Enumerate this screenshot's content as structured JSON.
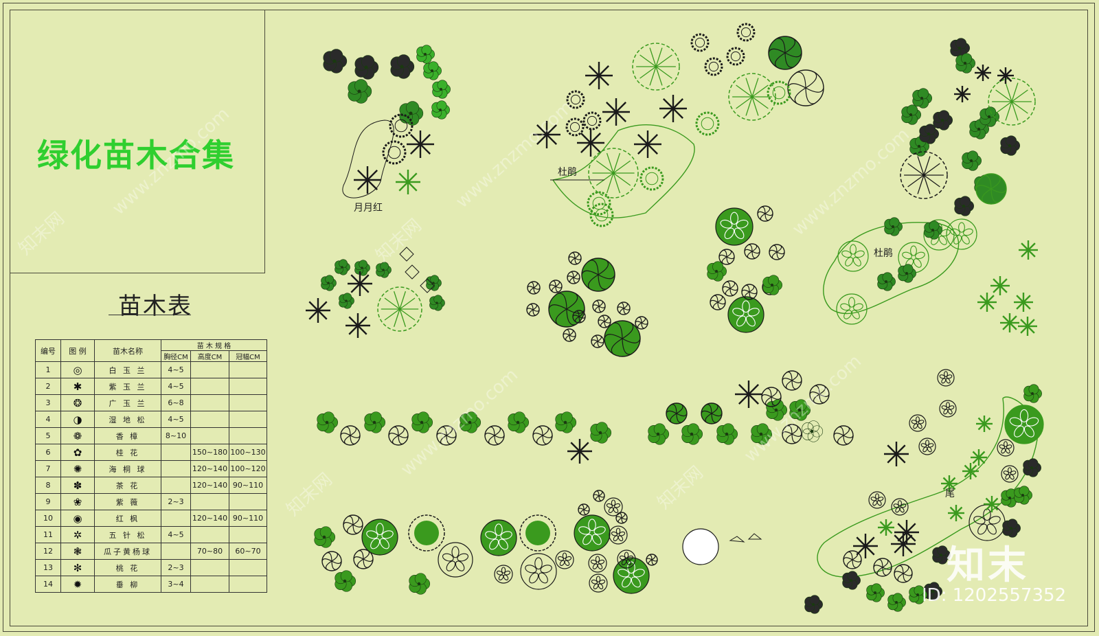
{
  "title": "绿化苗木合集",
  "table_caption": "苗木表",
  "table": {
    "headers": {
      "no": "编号",
      "legend": "图 例",
      "name": "苗木名称",
      "spec": "苗 木 规 格",
      "diameter": "胸径CM",
      "height": "高度CM",
      "crown": "冠幅CM"
    },
    "rows": [
      {
        "no": "1",
        "icon": "◎",
        "name": "白 玉 兰",
        "d": "4~5",
        "h": "",
        "w": ""
      },
      {
        "no": "2",
        "icon": "✱",
        "name": "紫 玉 兰",
        "d": "4~5",
        "h": "",
        "w": ""
      },
      {
        "no": "3",
        "icon": "❂",
        "name": "广 玉 兰",
        "d": "6~8",
        "h": "",
        "w": ""
      },
      {
        "no": "4",
        "icon": "◑",
        "name": "湿 地 松",
        "d": "4~5",
        "h": "",
        "w": ""
      },
      {
        "no": "5",
        "icon": "❁",
        "name": "香   樟",
        "d": "8~10",
        "h": "",
        "w": ""
      },
      {
        "no": "6",
        "icon": "✿",
        "name": "桂   花",
        "d": "",
        "h": "150~180",
        "w": "100~130"
      },
      {
        "no": "7",
        "icon": "✺",
        "name": "海 桐 球",
        "d": "",
        "h": "120~140",
        "w": "100~120"
      },
      {
        "no": "8",
        "icon": "✽",
        "name": "茶   花",
        "d": "",
        "h": "120~140",
        "w": "90~110"
      },
      {
        "no": "9",
        "icon": "❀",
        "name": "紫   薇",
        "d": "2~3",
        "h": "",
        "w": ""
      },
      {
        "no": "10",
        "icon": "◉",
        "name": "红   枫",
        "d": "",
        "h": "120~140",
        "w": "90~110"
      },
      {
        "no": "11",
        "icon": "✲",
        "name": "五 针 松",
        "d": "4~5",
        "h": "",
        "w": ""
      },
      {
        "no": "12",
        "icon": "❃",
        "name": "瓜子黄杨球",
        "d": "",
        "h": "70~80",
        "w": "60~70"
      },
      {
        "no": "13",
        "icon": "✻",
        "name": "桃   花",
        "d": "2~3",
        "h": "",
        "w": ""
      },
      {
        "no": "14",
        "icon": "✹",
        "name": "垂   柳",
        "d": "3~4",
        "h": "",
        "w": ""
      }
    ]
  },
  "labels": {
    "rose": "月月红",
    "azalea_1": "杜鹃",
    "azalea_2": "杜鹃",
    "tail": "尾"
  },
  "watermark": "www.znzmo.com",
  "watermark_brand": "知末网",
  "logo": "知末",
  "id_text": "ID: 1202557352",
  "colors": {
    "background": "#e3ebb3",
    "green": "#3a9a1e",
    "title_green": "#2fcf2f",
    "ink": "#1a1a1a"
  }
}
